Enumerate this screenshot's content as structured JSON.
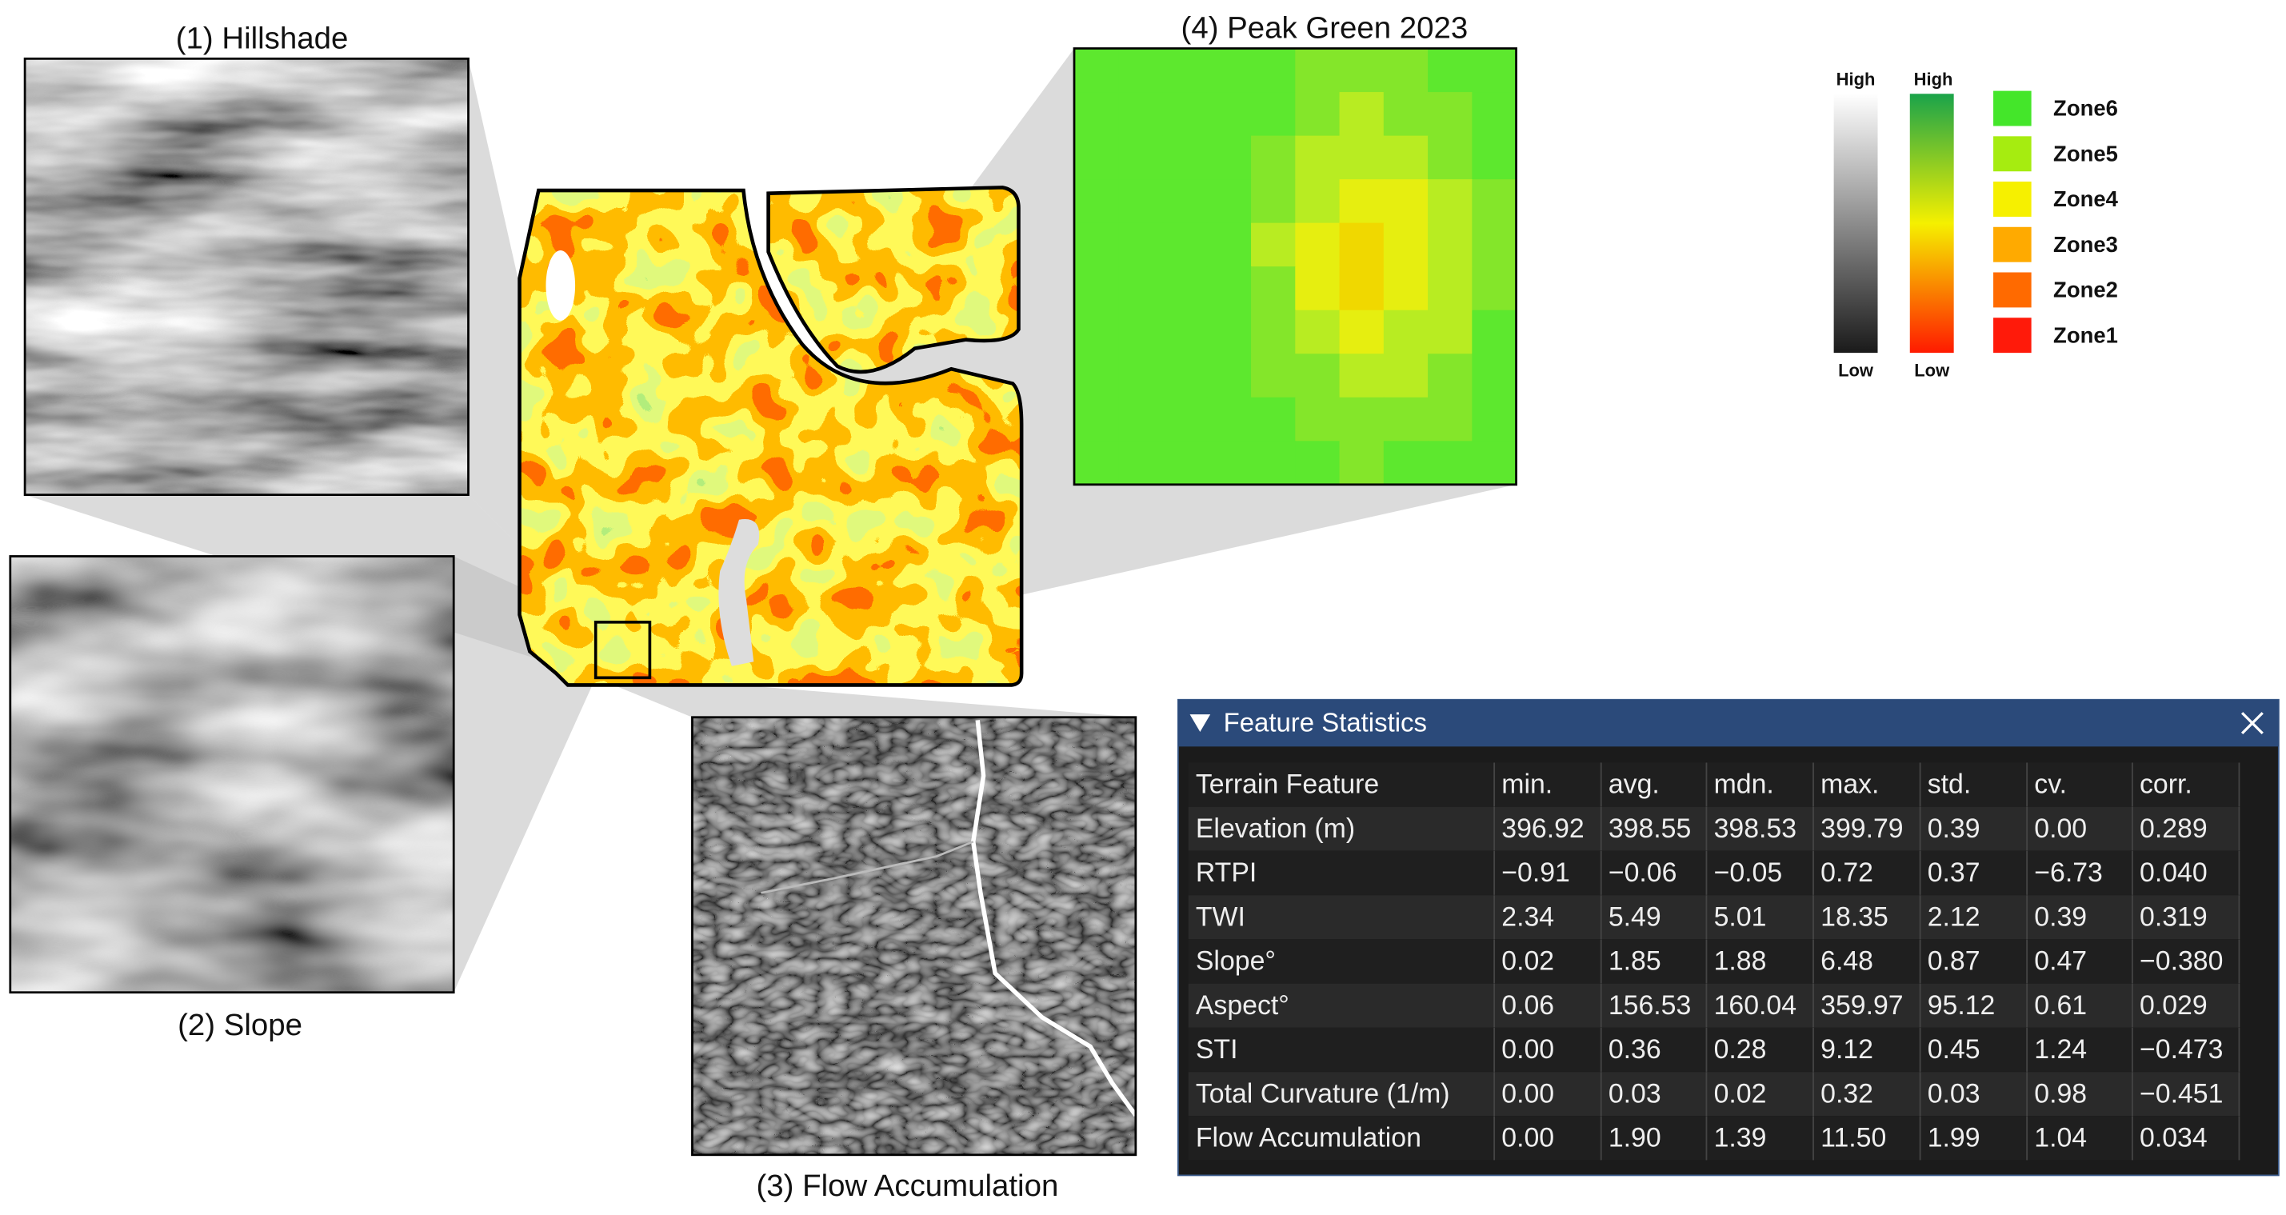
{
  "panels": {
    "hillshade": "(1) Hillshade",
    "slope": "(2) Slope",
    "flow": "(3) Flow Accumulation",
    "green": "(4) Peak Green 2023"
  },
  "legend": {
    "gray_high": "High",
    "gray_low": "Low",
    "color_high": "High",
    "color_low": "Low",
    "zones": [
      "Zone6",
      "Zone5",
      "Zone4",
      "Zone3",
      "Zone2",
      "Zone1"
    ]
  },
  "window": {
    "title": "Feature Statistics",
    "table": {
      "header": [
        "Terrain Feature",
        "min.",
        "avg.",
        "mdn.",
        "max.",
        "std.",
        "cv.",
        "corr."
      ],
      "rows": [
        [
          "Elevation (m)",
          "396.92",
          "398.55",
          "398.53",
          "399.79",
          "0.39",
          "0.00",
          "0.289"
        ],
        [
          "RTPI",
          "−0.91",
          "−0.06",
          "−0.05",
          "0.72",
          "0.37",
          "−6.73",
          "0.040"
        ],
        [
          "TWI",
          "2.34",
          "5.49",
          "5.01",
          "18.35",
          "2.12",
          "0.39",
          "0.319"
        ],
        [
          "Slope°",
          "0.02",
          "1.85",
          "1.88",
          "6.48",
          "0.87",
          "0.47",
          "−0.380"
        ],
        [
          "Aspect°",
          "0.06",
          "156.53",
          "160.04",
          "359.97",
          "95.12",
          "0.61",
          "0.029"
        ],
        [
          "STI",
          "0.00",
          "0.36",
          "0.28",
          "9.12",
          "0.45",
          "1.24",
          "−0.473"
        ],
        [
          "Total Curvature (1/m)",
          "0.00",
          "0.03",
          "0.02",
          "0.32",
          "0.03",
          "0.98",
          "−0.451"
        ],
        [
          "Flow Accumulation",
          "0.00",
          "1.90",
          "1.39",
          "11.50",
          "1.99",
          "1.04",
          "0.034"
        ]
      ]
    }
  }
}
